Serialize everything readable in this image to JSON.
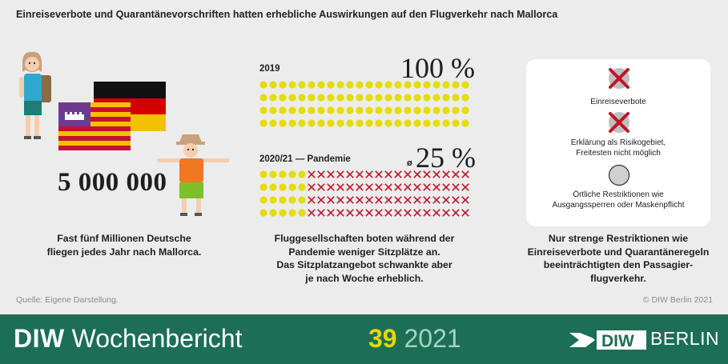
{
  "title": "Einreiseverbote und Quarantänevorschriften hatten erhebliche Auswirkungen auf den Flugverkehr nach Mallorca",
  "left": {
    "big_number": "5 000 000",
    "caption": [
      "Fast fünf Millionen Deutsche",
      "fliegen jedes Jahr nach Mallorca."
    ],
    "flags": [
      "Deutschland",
      "Mallorca"
    ]
  },
  "middle": {
    "rows": [
      {
        "label": "2019",
        "avg_symbol": "",
        "percent": "100 %",
        "share": 1.0,
        "seat_grid": {
          "cols": 22,
          "rows": 4,
          "filled_cols": 22
        }
      },
      {
        "label": "2020/21 — Pandemie",
        "avg_symbol": "ø",
        "percent": "25 %",
        "share": 0.25,
        "seat_grid": {
          "cols": 22,
          "rows": 4,
          "filled_cols": 5
        }
      }
    ],
    "caption": [
      "Fluggesellschaften boten während der",
      "Pandemie weniger Sitzplätze an.",
      "Das Sitzplatzangebot schwankte aber",
      "je nach Woche erheblich."
    ]
  },
  "right": {
    "items": [
      {
        "icon": "red-cross-circle-icon",
        "label": [
          "Einreiseverbote"
        ]
      },
      {
        "icon": "red-cross-circle-icon",
        "label": [
          "Erklärung als Risikogebiet,",
          "Freitesten nicht möglich"
        ]
      },
      {
        "icon": "grey-circle-icon",
        "label": [
          "Örtliche Restriktionen wie",
          "Ausgangssperren oder Maskenpflicht"
        ]
      }
    ],
    "caption": [
      "Nur strenge Restriktionen wie",
      "Einreiseverbote und Quarantäneregeln",
      "beeinträchtigten den Passagier-",
      "flugverkehr."
    ]
  },
  "source": "Quelle: Eigene Darstellung.",
  "copyright": "© DIW Berlin 2021",
  "footer": {
    "brand_bold": "DIW",
    "brand_rest": "Wochenbericht",
    "issue_number": "39",
    "issue_year": "2021",
    "logo_text": "BERLIN",
    "logo_mark": "DIW"
  },
  "colors": {
    "seat_yellow": "#e6dc0a",
    "cross_red": "#c0142b",
    "footer_green": "#1c6e55",
    "issue_yellow": "#e6d800",
    "year_mint": "#a6d3c2"
  }
}
